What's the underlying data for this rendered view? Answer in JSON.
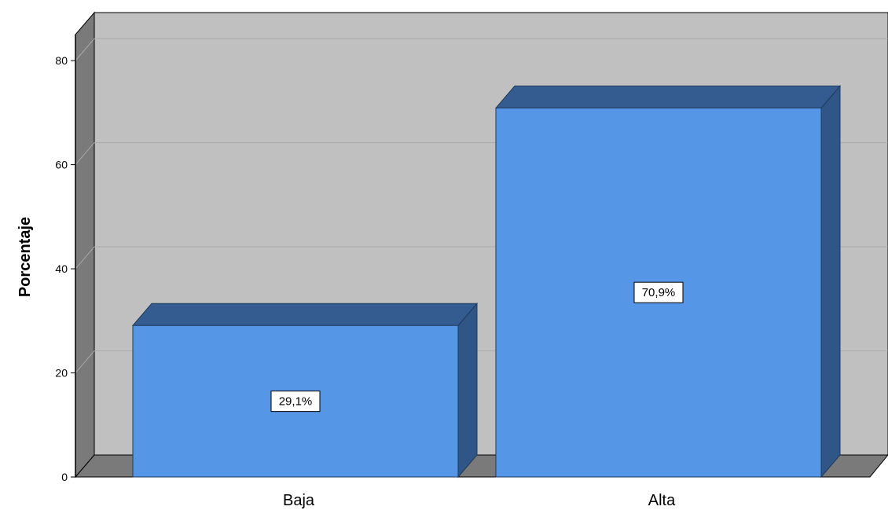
{
  "chart_data": {
    "type": "bar",
    "categories": [
      "Baja",
      "Alta"
    ],
    "values": [
      29.1,
      70.9
    ],
    "data_labels": [
      "29,1%",
      "70,9%"
    ],
    "title": "",
    "xlabel": "",
    "ylabel": "Porcentaje",
    "ylim": [
      0,
      85
    ],
    "yticks": [
      0,
      20,
      40,
      60,
      80
    ],
    "grid": true,
    "legend": "none",
    "style": "3d",
    "colors": {
      "bar_front": "#5596e6",
      "bar_top": "#345c91",
      "bar_side": "#2f5687",
      "plot_back": "#c0c0c0",
      "plot_left_wall": "#7a7a7a",
      "plot_floor": "#7a7a7a",
      "gridline": "#a9a9a9"
    }
  }
}
